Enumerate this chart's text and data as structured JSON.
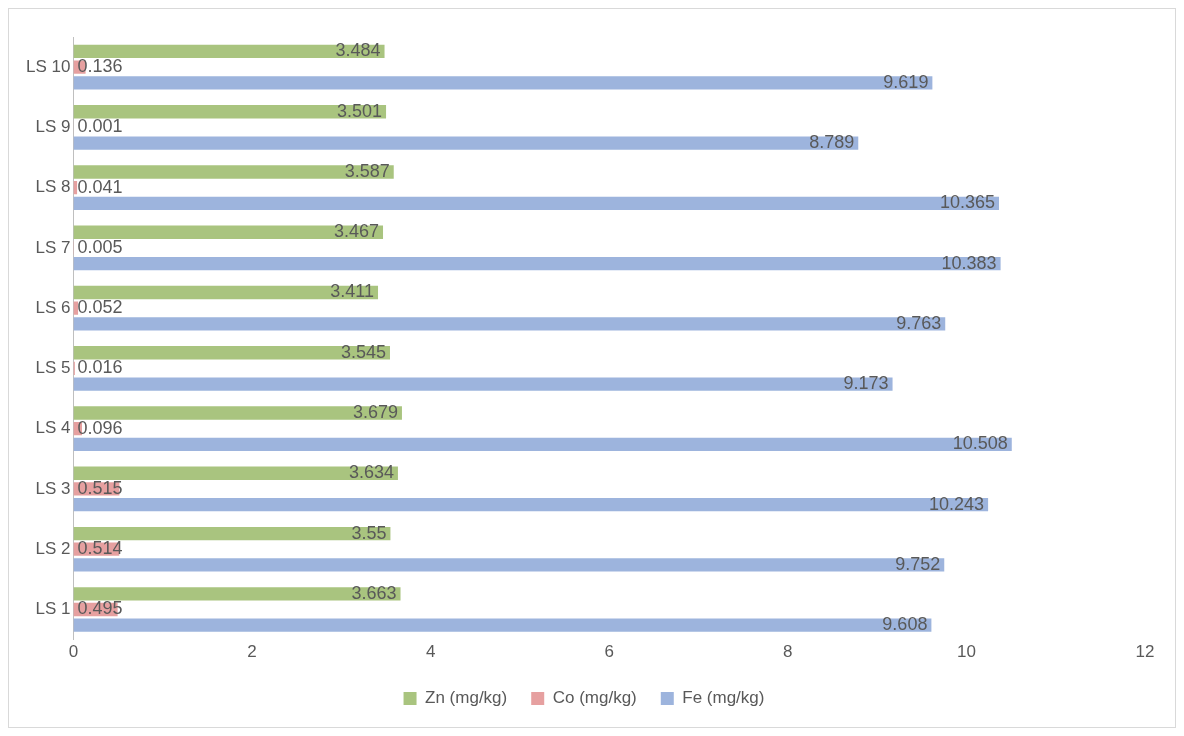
{
  "chart_data": {
    "type": "bar",
    "orientation": "horizontal",
    "categories": [
      "LS 10",
      "LS 9",
      "LS 8",
      "LS 7",
      "LS 6",
      "LS 5",
      "LS 4",
      "LS 3",
      "LS 2",
      "LS 1"
    ],
    "series": [
      {
        "name": "Zn (mg/kg)",
        "color": "#a9c47f",
        "values": [
          3.484,
          3.501,
          3.587,
          3.467,
          3.411,
          3.545,
          3.679,
          3.634,
          3.55,
          3.663
        ]
      },
      {
        "name": "Co (mg/kg)",
        "color": "#e6a0a0",
        "values": [
          0.136,
          0.001,
          0.041,
          0.005,
          0.052,
          0.016,
          0.096,
          0.515,
          0.514,
          0.495
        ]
      },
      {
        "name": "Fe (mg/kg)",
        "color": "#9db4dd",
        "values": [
          9.619,
          8.789,
          10.365,
          10.383,
          9.763,
          9.173,
          10.508,
          10.243,
          9.752,
          9.608
        ]
      }
    ],
    "xlim": [
      0,
      12
    ],
    "xticks": [
      0,
      2,
      4,
      6,
      8,
      10,
      12
    ],
    "grid": false,
    "legend": "bottom",
    "data_labels": true
  }
}
